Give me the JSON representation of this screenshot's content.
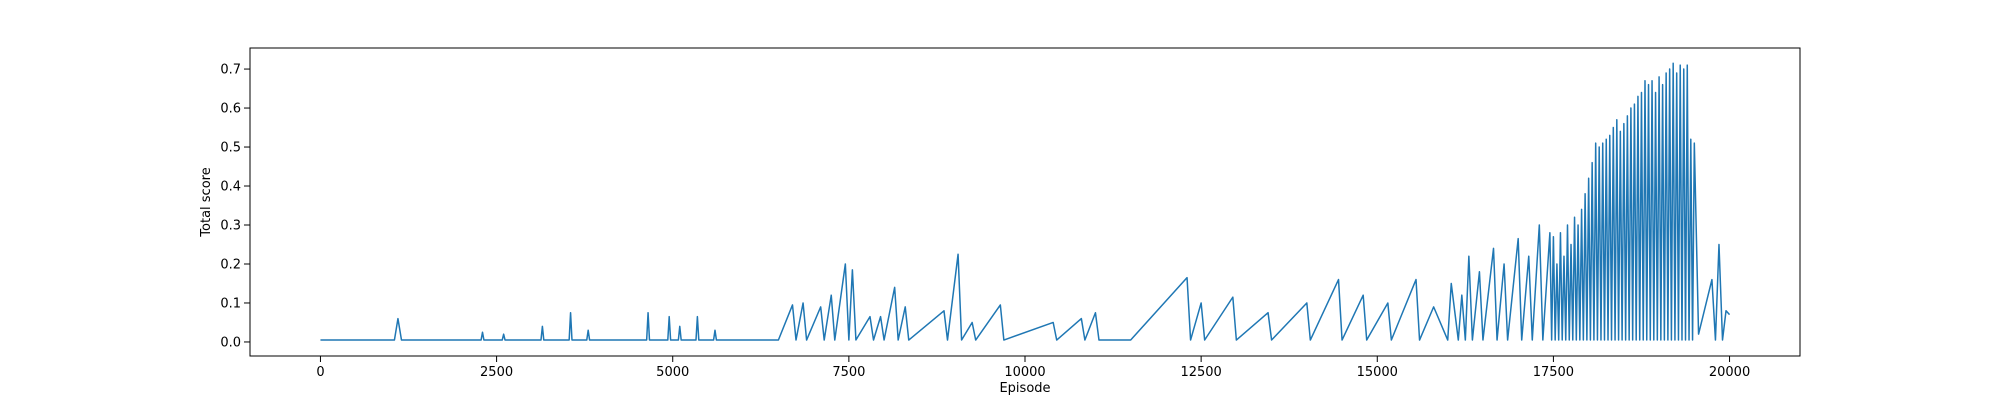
{
  "chart_data": {
    "type": "line",
    "xlabel": "Episode",
    "ylabel": "Total score",
    "xlim": [
      -1000,
      21000
    ],
    "ylim": [
      -0.036,
      0.754
    ],
    "xticks": [
      0,
      2500,
      5000,
      7500,
      10000,
      12500,
      15000,
      17500,
      20000
    ],
    "yticks": [
      {
        "value": 0,
        "label": "0.0"
      },
      0.1,
      0.2,
      0.3,
      0.4,
      0.5,
      0.6,
      0.7
    ],
    "grid": false,
    "x": [
      0,
      1050,
      1100,
      1150,
      2280,
      2300,
      2320,
      2580,
      2600,
      2620,
      3130,
      3150,
      3170,
      3530,
      3550,
      3570,
      3780,
      3800,
      3820,
      4630,
      4650,
      4670,
      4930,
      4950,
      4970,
      5080,
      5100,
      5120,
      5330,
      5350,
      5370,
      5580,
      5600,
      5620,
      6500,
      6700,
      6750,
      6850,
      6900,
      7100,
      7150,
      7250,
      7300,
      7450,
      7500,
      7550,
      7600,
      7800,
      7850,
      7950,
      8000,
      8150,
      8200,
      8300,
      8350,
      8850,
      8900,
      9050,
      9100,
      9250,
      9300,
      9650,
      9700,
      10400,
      10450,
      10800,
      10850,
      11000,
      11050,
      11500,
      12300,
      12350,
      12500,
      12550,
      12950,
      13000,
      13450,
      13500,
      14000,
      14050,
      14450,
      14500,
      14800,
      14850,
      15150,
      15200,
      15550,
      15600,
      15800,
      16000,
      16050,
      16150,
      16200,
      16250,
      16300,
      16350,
      16450,
      16500,
      16650,
      16700,
      16800,
      16850,
      17000,
      17050,
      17150,
      17200,
      17300,
      17350,
      17450,
      17475,
      17500,
      17525,
      17550,
      17575,
      17600,
      17625,
      17650,
      17675,
      17700,
      17725,
      17750,
      17775,
      17800,
      17825,
      17850,
      17875,
      17900,
      17925,
      17950,
      17975,
      18000,
      18025,
      18050,
      18075,
      18100,
      18125,
      18150,
      18175,
      18200,
      18225,
      18250,
      18275,
      18300,
      18325,
      18350,
      18375,
      18400,
      18425,
      18450,
      18475,
      18500,
      18525,
      18550,
      18575,
      18600,
      18625,
      18650,
      18675,
      18700,
      18725,
      18750,
      18775,
      18800,
      18825,
      18850,
      18875,
      18900,
      18925,
      18950,
      18975,
      19000,
      19025,
      19050,
      19075,
      19100,
      19125,
      19150,
      19175,
      19200,
      19225,
      19250,
      19275,
      19300,
      19325,
      19350,
      19375,
      19400,
      19425,
      19450,
      19475,
      19500,
      19560,
      19750,
      19800,
      19850,
      19900,
      19950,
      20000
    ],
    "series": [
      {
        "name": "Total score",
        "color": "#1f77b4",
        "values": [
          0.005,
          0.005,
          0.06,
          0.005,
          0.005,
          0.025,
          0.005,
          0.005,
          0.02,
          0.005,
          0.005,
          0.04,
          0.005,
          0.005,
          0.075,
          0.005,
          0.005,
          0.03,
          0.005,
          0.005,
          0.075,
          0.005,
          0.005,
          0.065,
          0.005,
          0.005,
          0.04,
          0.005,
          0.005,
          0.065,
          0.005,
          0.005,
          0.03,
          0.005,
          0.005,
          0.095,
          0.005,
          0.1,
          0.005,
          0.09,
          0.005,
          0.12,
          0.005,
          0.2,
          0.005,
          0.185,
          0.005,
          0.065,
          0.005,
          0.065,
          0.005,
          0.14,
          0.005,
          0.09,
          0.005,
          0.08,
          0.005,
          0.225,
          0.005,
          0.05,
          0.005,
          0.095,
          0.005,
          0.05,
          0.005,
          0.06,
          0.005,
          0.075,
          0.005,
          0.005,
          0.165,
          0.005,
          0.1,
          0.005,
          0.115,
          0.005,
          0.075,
          0.005,
          0.1,
          0.005,
          0.16,
          0.005,
          0.12,
          0.005,
          0.1,
          0.005,
          0.16,
          0.005,
          0.09,
          0.005,
          0.15,
          0.005,
          0.12,
          0.005,
          0.22,
          0.005,
          0.18,
          0.005,
          0.24,
          0.005,
          0.2,
          0.005,
          0.265,
          0.005,
          0.22,
          0.005,
          0.3,
          0.005,
          0.28,
          0.005,
          0.27,
          0.005,
          0.2,
          0.005,
          0.28,
          0.005,
          0.22,
          0.005,
          0.3,
          0.005,
          0.25,
          0.005,
          0.32,
          0.005,
          0.3,
          0.005,
          0.34,
          0.005,
          0.38,
          0.005,
          0.42,
          0.005,
          0.46,
          0.005,
          0.51,
          0.005,
          0.5,
          0.005,
          0.51,
          0.005,
          0.52,
          0.005,
          0.53,
          0.005,
          0.55,
          0.005,
          0.57,
          0.005,
          0.54,
          0.005,
          0.56,
          0.005,
          0.58,
          0.005,
          0.6,
          0.005,
          0.61,
          0.005,
          0.63,
          0.005,
          0.64,
          0.005,
          0.67,
          0.005,
          0.66,
          0.005,
          0.67,
          0.005,
          0.64,
          0.005,
          0.68,
          0.005,
          0.66,
          0.005,
          0.69,
          0.005,
          0.7,
          0.005,
          0.715,
          0.005,
          0.69,
          0.005,
          0.71,
          0.005,
          0.7,
          0.005,
          0.71,
          0.005,
          0.52,
          0.005,
          0.51,
          0.02,
          0.16,
          0.005,
          0.25,
          0.005,
          0.08,
          0.07
        ]
      }
    ]
  }
}
